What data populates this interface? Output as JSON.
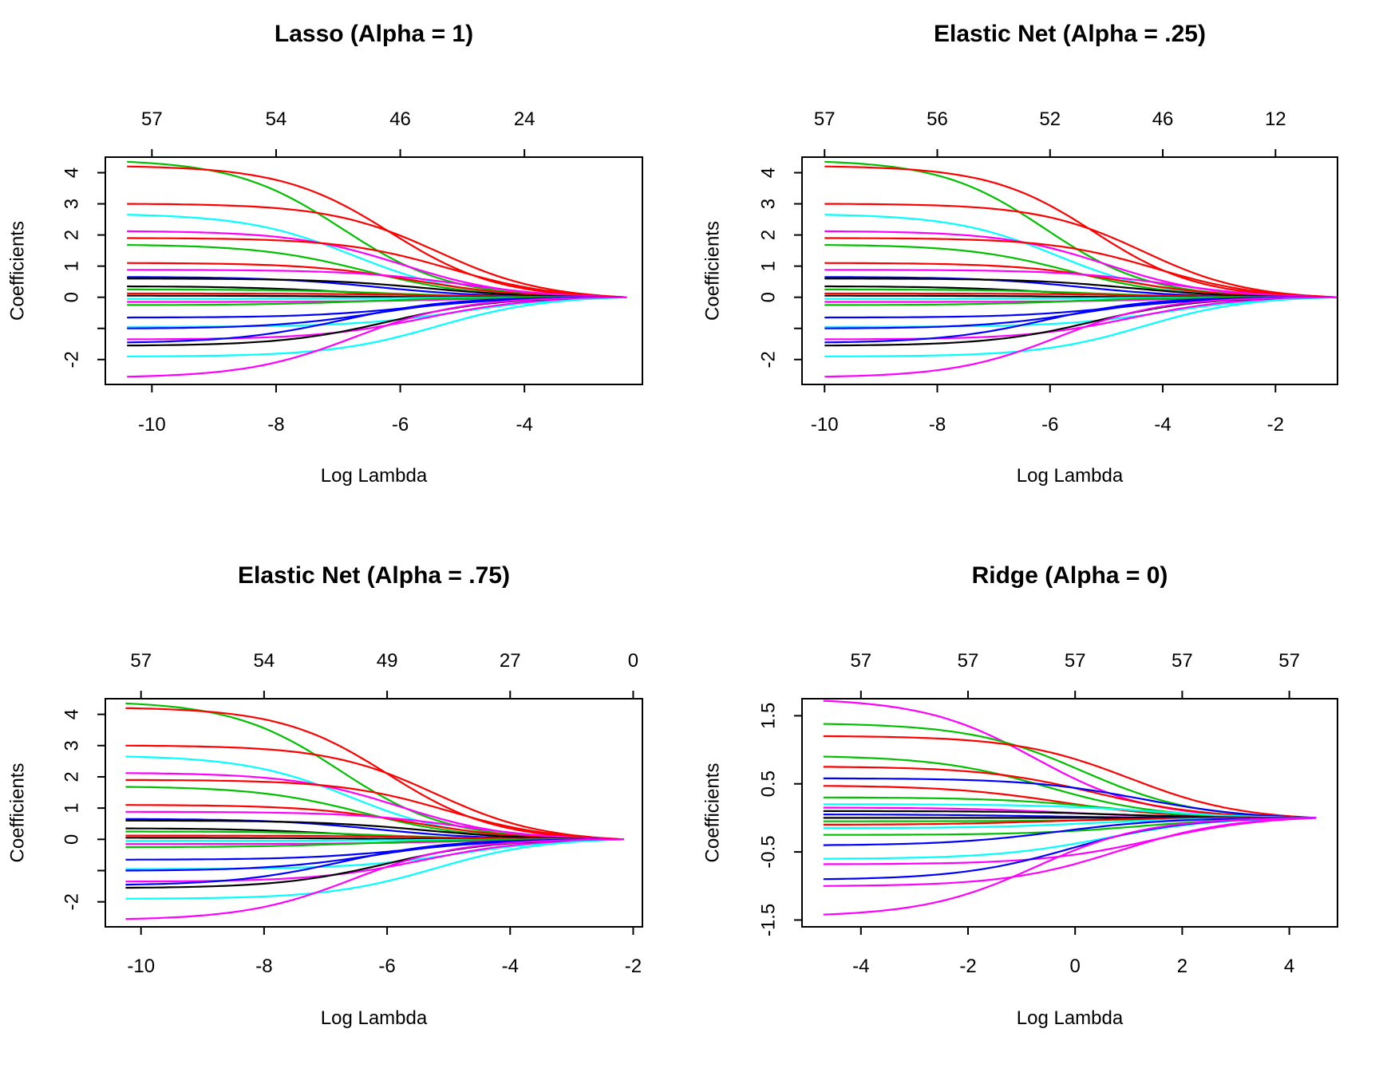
{
  "chart_data": [
    {
      "type": "line",
      "title": "Lasso (Alpha = 1)",
      "xlabel": "Log Lambda",
      "ylabel": "Coefficients",
      "xlim": [
        -10.75,
        -2.1
      ],
      "ylim": [
        -2.8,
        4.5
      ],
      "x_ticks": [
        -10,
        -8,
        -6,
        -4
      ],
      "x_tick_labels": [
        "-10",
        "-8",
        "-6",
        "-4"
      ],
      "y_ticks": [
        -2,
        -1,
        0,
        1,
        2,
        3,
        4
      ],
      "y_tick_labels": [
        "-2",
        "",
        "0",
        "1",
        "2",
        "3",
        "4"
      ],
      "top_ticks": [
        -10,
        -8,
        -6,
        -4
      ],
      "top_tick_labels": [
        "57",
        "54",
        "46",
        "24"
      ],
      "x_range": [
        -10.4,
        -2.35
      ],
      "series_start_values": [
        4.35,
        4.2,
        3.0,
        2.65,
        2.12,
        1.9,
        1.68,
        1.1,
        0.88,
        0.65,
        0.6,
        0.35,
        0.25,
        0.12,
        0.05,
        -0.05,
        -0.15,
        -0.25,
        -0.65,
        -0.95,
        -1.0,
        -1.35,
        -1.45,
        -1.55,
        -1.9,
        -2.55
      ],
      "series_colors": [
        "#00c000",
        "#ff0000",
        "#ff0000",
        "#00ffff",
        "#ff00ff",
        "#ff0000",
        "#00c000",
        "#ff0000",
        "#ff00ff",
        "#0000ff",
        "#000000",
        "#000000",
        "#00c000",
        "#ff0000",
        "#000000",
        "#00ffff",
        "#ff00ff",
        "#00c000",
        "#0000ff",
        "#00ffff",
        "#0000ff",
        "#ff00ff",
        "#0000ff",
        "#000000",
        "#00ffff",
        "#ff00ff"
      ]
    },
    {
      "type": "line",
      "title": "Elastic Net (Alpha = .25)",
      "xlabel": "Log Lambda",
      "ylabel": "Coefficients",
      "xlim": [
        -10.4,
        -0.9
      ],
      "ylim": [
        -2.8,
        4.5
      ],
      "x_ticks": [
        -10,
        -8,
        -6,
        -4,
        -2
      ],
      "x_tick_labels": [
        "-10",
        "-8",
        "-6",
        "-4",
        "-2"
      ],
      "y_ticks": [
        -2,
        -1,
        0,
        1,
        2,
        3,
        4
      ],
      "y_tick_labels": [
        "-2",
        "",
        "0",
        "1",
        "2",
        "3",
        "4"
      ],
      "top_ticks": [
        -10,
        -8,
        -6,
        -4,
        -2
      ],
      "top_tick_labels": [
        "57",
        "56",
        "52",
        "46",
        "12"
      ],
      "x_range": [
        -10.0,
        -0.9
      ],
      "series_start_values": [
        4.35,
        4.2,
        3.0,
        2.65,
        2.12,
        1.9,
        1.68,
        1.1,
        0.88,
        0.65,
        0.6,
        0.35,
        0.25,
        0.12,
        0.05,
        -0.05,
        -0.15,
        -0.25,
        -0.65,
        -0.95,
        -1.0,
        -1.35,
        -1.45,
        -1.55,
        -1.9,
        -2.55
      ],
      "series_colors": [
        "#00c000",
        "#ff0000",
        "#ff0000",
        "#00ffff",
        "#ff00ff",
        "#ff0000",
        "#00c000",
        "#ff0000",
        "#ff00ff",
        "#0000ff",
        "#000000",
        "#000000",
        "#00c000",
        "#ff0000",
        "#000000",
        "#00ffff",
        "#ff00ff",
        "#00c000",
        "#0000ff",
        "#00ffff",
        "#0000ff",
        "#ff00ff",
        "#0000ff",
        "#000000",
        "#00ffff",
        "#ff00ff"
      ]
    },
    {
      "type": "line",
      "title": "Elastic Net (Alpha = .75)",
      "xlabel": "Log Lambda",
      "ylabel": "Coefficients",
      "xlim": [
        -10.58,
        -1.85
      ],
      "ylim": [
        -2.8,
        4.5
      ],
      "x_ticks": [
        -10,
        -8,
        -6,
        -4,
        -2
      ],
      "x_tick_labels": [
        "-10",
        "-8",
        "-6",
        "-4",
        "-2"
      ],
      "y_ticks": [
        -2,
        -1,
        0,
        1,
        2,
        3,
        4
      ],
      "y_tick_labels": [
        "-2",
        "",
        "0",
        "1",
        "2",
        "3",
        "4"
      ],
      "top_ticks": [
        -10,
        -8,
        -6,
        -4,
        -2
      ],
      "top_tick_labels": [
        "57",
        "54",
        "49",
        "27",
        "0"
      ],
      "x_range": [
        -10.25,
        -2.15
      ],
      "series_start_values": [
        4.35,
        4.2,
        3.0,
        2.65,
        2.12,
        1.9,
        1.68,
        1.1,
        0.88,
        0.65,
        0.6,
        0.35,
        0.25,
        0.12,
        0.05,
        -0.05,
        -0.15,
        -0.25,
        -0.65,
        -0.95,
        -1.0,
        -1.35,
        -1.45,
        -1.55,
        -1.9,
        -2.55
      ],
      "series_colors": [
        "#00c000",
        "#ff0000",
        "#ff0000",
        "#00ffff",
        "#ff00ff",
        "#ff0000",
        "#00c000",
        "#ff0000",
        "#ff00ff",
        "#0000ff",
        "#000000",
        "#000000",
        "#00c000",
        "#ff0000",
        "#000000",
        "#00ffff",
        "#ff00ff",
        "#00c000",
        "#0000ff",
        "#00ffff",
        "#0000ff",
        "#ff00ff",
        "#0000ff",
        "#000000",
        "#00ffff",
        "#ff00ff"
      ]
    },
    {
      "type": "line",
      "title": "Ridge (Alpha = 0)",
      "xlabel": "Log Lambda",
      "ylabel": "Coefficients",
      "xlim": [
        -5.1,
        4.9
      ],
      "ylim": [
        -1.6,
        1.75
      ],
      "x_ticks": [
        -4,
        -2,
        0,
        2,
        4
      ],
      "x_tick_labels": [
        "-4",
        "-2",
        "0",
        "2",
        "4"
      ],
      "y_ticks": [
        -1.5,
        -0.5,
        0.5,
        1.5
      ],
      "y_tick_labels": [
        "-1.5",
        "-0.5",
        "0.5",
        "1.5"
      ],
      "top_ticks": [
        -4,
        -2,
        0,
        2,
        4
      ],
      "top_tick_labels": [
        "57",
        "57",
        "57",
        "57",
        "57"
      ],
      "x_range": [
        -4.7,
        4.5
      ],
      "series_start_values": [
        1.72,
        1.38,
        1.2,
        0.9,
        0.75,
        0.58,
        0.47,
        0.3,
        0.2,
        0.15,
        0.1,
        0.05,
        0.0,
        -0.05,
        -0.1,
        -0.15,
        -0.25,
        -0.4,
        -0.6,
        -0.68,
        -0.9,
        -1.0,
        -1.42
      ],
      "series_colors": [
        "#ff00ff",
        "#00c000",
        "#ff0000",
        "#00c000",
        "#ff0000",
        "#0000ff",
        "#ff0000",
        "#00c000",
        "#00ffff",
        "#ff00ff",
        "#000000",
        "#0000ff",
        "#000000",
        "#00c000",
        "#ff0000",
        "#00ffff",
        "#00c000",
        "#0000ff",
        "#00ffff",
        "#ff00ff",
        "#0000ff",
        "#ff00ff",
        "#ff00ff"
      ]
    }
  ]
}
